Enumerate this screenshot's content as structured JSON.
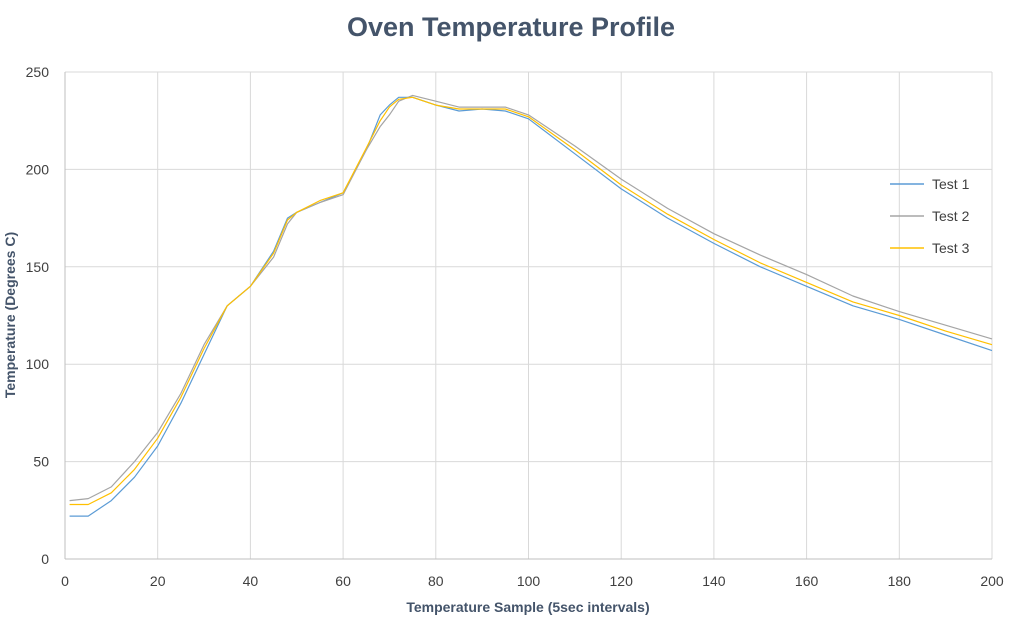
{
  "chart_data": {
    "type": "line",
    "title": "Oven Temperature Profile",
    "xlabel": "Temperature Sample (5sec intervals)",
    "ylabel": "Temperature (Degrees C)",
    "xlim": [
      0,
      200
    ],
    "ylim": [
      0,
      250
    ],
    "xticks": [
      0,
      20,
      40,
      60,
      80,
      100,
      120,
      140,
      160,
      180,
      200
    ],
    "yticks": [
      0,
      50,
      100,
      150,
      200,
      250
    ],
    "grid": true,
    "legend_position": "right",
    "series": [
      {
        "name": "Test 1",
        "color": "#5b9bd5",
        "x": [
          1,
          5,
          10,
          15,
          20,
          25,
          30,
          35,
          40,
          45,
          48,
          50,
          55,
          60,
          65,
          68,
          70,
          72,
          75,
          80,
          85,
          90,
          95,
          100,
          110,
          120,
          130,
          140,
          150,
          160,
          170,
          180,
          190,
          200
        ],
        "y": [
          22,
          22,
          30,
          42,
          58,
          80,
          105,
          130,
          140,
          158,
          175,
          178,
          183,
          188,
          210,
          228,
          233,
          237,
          237,
          233,
          230,
          231,
          230,
          226,
          208,
          190,
          175,
          162,
          150,
          140,
          130,
          123,
          115,
          107
        ]
      },
      {
        "name": "Test 2",
        "color": "#a5a5a5",
        "x": [
          1,
          5,
          10,
          15,
          20,
          25,
          30,
          35,
          40,
          45,
          48,
          50,
          55,
          60,
          65,
          68,
          70,
          72,
          75,
          80,
          85,
          90,
          95,
          100,
          110,
          120,
          130,
          140,
          150,
          160,
          170,
          180,
          190,
          200
        ],
        "y": [
          30,
          31,
          37,
          50,
          65,
          85,
          110,
          130,
          140,
          155,
          172,
          178,
          183,
          187,
          210,
          222,
          228,
          235,
          238,
          235,
          232,
          232,
          232,
          228,
          212,
          195,
          180,
          167,
          156,
          146,
          135,
          127,
          120,
          113
        ]
      },
      {
        "name": "Test 3",
        "color": "#ffc000",
        "x": [
          1,
          5,
          10,
          15,
          20,
          25,
          30,
          35,
          40,
          45,
          48,
          50,
          55,
          60,
          65,
          68,
          70,
          72,
          75,
          80,
          85,
          90,
          95,
          100,
          110,
          120,
          130,
          140,
          150,
          160,
          170,
          180,
          190,
          200
        ],
        "y": [
          28,
          28,
          34,
          46,
          62,
          83,
          108,
          130,
          140,
          157,
          174,
          178,
          184,
          188,
          211,
          225,
          232,
          236,
          237,
          233,
          231,
          231,
          231,
          227,
          210,
          192,
          177,
          164,
          152,
          142,
          132,
          125,
          117,
          110
        ]
      }
    ]
  }
}
